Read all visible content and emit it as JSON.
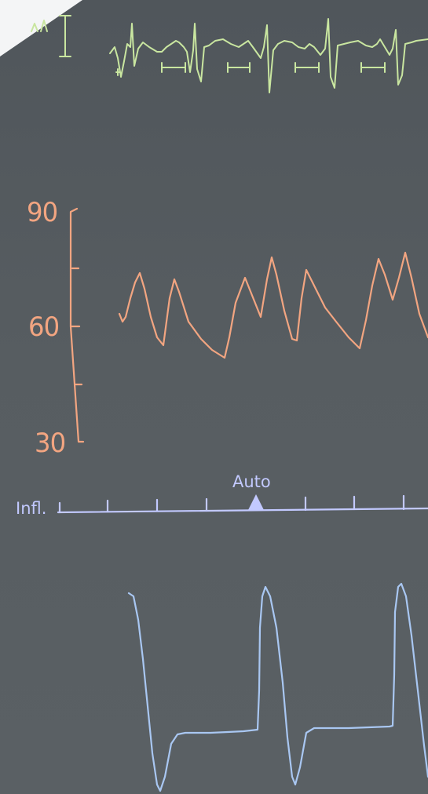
{
  "pressure_scale": {
    "max_label": "90",
    "mid_label": "60",
    "min_label": "30"
  },
  "inflation_bar": {
    "mode_label": "Auto",
    "left_label": "Infl."
  },
  "colors": {
    "screen_background": "#575d61",
    "ecg_trace": "#c9e6a0",
    "pressure_trace": "#f2a581",
    "inflation_bar": "#c2c9ff",
    "balloon_trace": "#a9c7f2"
  }
}
